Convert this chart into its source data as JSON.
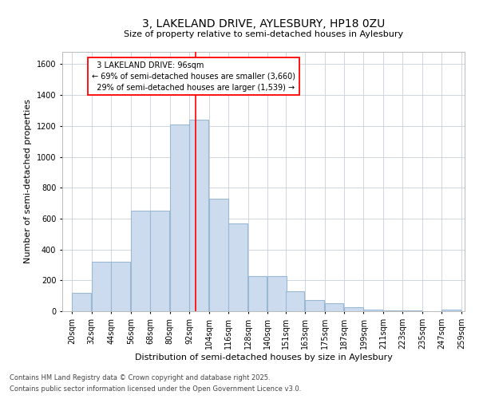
{
  "title1": "3, LAKELAND DRIVE, AYLESBURY, HP18 0ZU",
  "title2": "Size of property relative to semi-detached houses in Aylesbury",
  "xlabel": "Distribution of semi-detached houses by size in Aylesbury",
  "ylabel": "Number of semi-detached properties",
  "footnote1": "Contains HM Land Registry data © Crown copyright and database right 2025.",
  "footnote2": "Contains public sector information licensed under the Open Government Licence v3.0.",
  "bar_color": "#ccdcee",
  "bar_edge_color": "#9ab8d4",
  "grid_color": "#c8d0da",
  "background_color": "#ffffff",
  "property_line_value": 96,
  "property_label": "3 LAKELAND DRIVE: 96sqm",
  "pct_smaller": "69% of semi-detached houses are smaller (3,660)",
  "pct_larger": "29% of semi-detached houses are larger (1,539)",
  "bin_starts": [
    20,
    32,
    44,
    56,
    68,
    80,
    92,
    104,
    116,
    128,
    140,
    151,
    163,
    175,
    187,
    199,
    211,
    223,
    235,
    247
  ],
  "bin_width": 12,
  "bar_heights": [
    120,
    320,
    320,
    650,
    650,
    1210,
    1240,
    730,
    570,
    225,
    225,
    130,
    70,
    50,
    25,
    10,
    5,
    3,
    2,
    8
  ],
  "ylim": [
    0,
    1680
  ],
  "yticks": [
    0,
    200,
    400,
    600,
    800,
    1000,
    1200,
    1400,
    1600
  ],
  "title1_fontsize": 10,
  "title2_fontsize": 8,
  "ylabel_fontsize": 8,
  "xlabel_fontsize": 8,
  "tick_fontsize": 7,
  "footnote_fontsize": 6
}
